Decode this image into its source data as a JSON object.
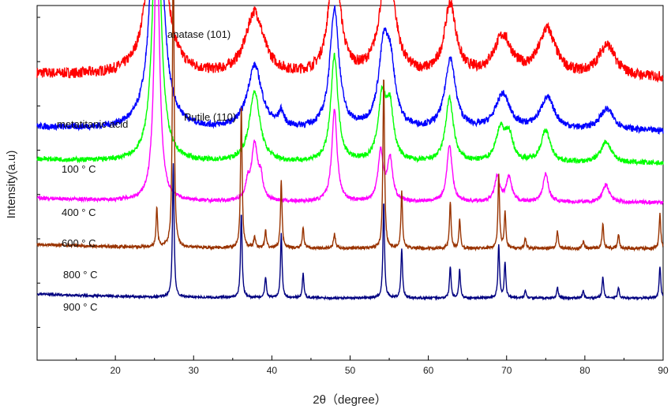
{
  "chart_data": {
    "type": "line",
    "title": "",
    "xlabel": "2θ（degree）",
    "ylabel": "Intensity(a.u)",
    "xlim": [
      10,
      90
    ],
    "xticks": [
      20,
      30,
      40,
      50,
      60,
      70,
      80,
      90
    ],
    "y_tick_labels_shown": false,
    "grid": false,
    "legend": "none (series labelled inline at left)",
    "annotations": [
      {
        "text": "anatase (101)",
        "x": 25.3
      },
      {
        "text": "Rutile (110)",
        "x": 27.4
      }
    ],
    "series": [
      {
        "name": "metatitanic acid",
        "color": "#ff0000",
        "baseline": 0.795,
        "noise": 0.015,
        "peaks": [
          [
            25.3,
            0.86,
            0.9
          ],
          [
            37.8,
            0.18,
            1.4
          ],
          [
            48.0,
            0.36,
            0.8
          ],
          [
            54.5,
            0.21,
            1.0
          ],
          [
            55.2,
            0.14,
            0.9
          ],
          [
            62.8,
            0.2,
            0.9
          ],
          [
            69.5,
            0.11,
            1.4
          ],
          [
            75.2,
            0.13,
            1.3
          ],
          [
            82.8,
            0.09,
            1.3
          ]
        ]
      },
      {
        "name": "100 ° C",
        "color": "#0000ff",
        "baseline": 0.645,
        "noise": 0.009,
        "peaks": [
          [
            25.3,
            0.85,
            0.8
          ],
          [
            37.8,
            0.18,
            1.1
          ],
          [
            41.2,
            0.04,
            0.4
          ],
          [
            48.0,
            0.34,
            0.7
          ],
          [
            54.3,
            0.22,
            0.8
          ],
          [
            55.2,
            0.14,
            0.7
          ],
          [
            62.8,
            0.2,
            0.8
          ],
          [
            69.5,
            0.1,
            1.1
          ],
          [
            75.2,
            0.09,
            1.1
          ],
          [
            82.8,
            0.06,
            1.1
          ]
        ]
      },
      {
        "name": "400 ° C",
        "color": "#00ff00",
        "baseline": 0.555,
        "noise": 0.007,
        "peaks": [
          [
            25.3,
            0.8,
            0.6
          ],
          [
            37.8,
            0.2,
            0.8
          ],
          [
            48.0,
            0.3,
            0.55
          ],
          [
            54.1,
            0.18,
            0.6
          ],
          [
            55.1,
            0.14,
            0.55
          ],
          [
            62.7,
            0.18,
            0.6
          ],
          [
            69.2,
            0.09,
            0.7
          ],
          [
            70.3,
            0.07,
            0.6
          ],
          [
            75.0,
            0.09,
            0.7
          ],
          [
            82.7,
            0.06,
            0.8
          ]
        ]
      },
      {
        "name": "600 ° C",
        "color": "#ff00ff",
        "baseline": 0.445,
        "noise": 0.005,
        "peaks": [
          [
            25.3,
            0.77,
            0.4
          ],
          [
            36.9,
            0.04,
            0.3
          ],
          [
            37.8,
            0.16,
            0.5
          ],
          [
            38.6,
            0.05,
            0.3
          ],
          [
            48.0,
            0.26,
            0.4
          ],
          [
            53.9,
            0.14,
            0.4
          ],
          [
            55.1,
            0.12,
            0.4
          ],
          [
            62.7,
            0.16,
            0.4
          ],
          [
            68.8,
            0.07,
            0.4
          ],
          [
            70.3,
            0.07,
            0.4
          ],
          [
            75.0,
            0.08,
            0.4
          ],
          [
            82.7,
            0.05,
            0.5
          ]
        ]
      },
      {
        "name": "800 ° C",
        "color": "#993300",
        "baseline": 0.315,
        "noise": 0.004,
        "peaks": [
          [
            25.3,
            0.11,
            0.12
          ],
          [
            27.4,
            0.89,
            0.12
          ],
          [
            36.1,
            0.4,
            0.12
          ],
          [
            37.8,
            0.03,
            0.15
          ],
          [
            39.2,
            0.05,
            0.12
          ],
          [
            41.2,
            0.19,
            0.12
          ],
          [
            44.0,
            0.06,
            0.12
          ],
          [
            48.0,
            0.04,
            0.15
          ],
          [
            54.3,
            0.49,
            0.12
          ],
          [
            56.6,
            0.16,
            0.12
          ],
          [
            62.8,
            0.13,
            0.12
          ],
          [
            64.0,
            0.08,
            0.12
          ],
          [
            69.0,
            0.21,
            0.12
          ],
          [
            69.8,
            0.1,
            0.12
          ],
          [
            72.4,
            0.03,
            0.12
          ],
          [
            76.5,
            0.05,
            0.12
          ],
          [
            79.8,
            0.02,
            0.12
          ],
          [
            82.3,
            0.07,
            0.12
          ],
          [
            84.3,
            0.04,
            0.12
          ],
          [
            89.6,
            0.1,
            0.12
          ]
        ]
      },
      {
        "name": "900 ° C",
        "color": "#000080",
        "baseline": 0.175,
        "noise": 0.003,
        "peaks": [
          [
            27.4,
            0.38,
            0.12
          ],
          [
            36.1,
            0.24,
            0.12
          ],
          [
            39.2,
            0.06,
            0.12
          ],
          [
            41.2,
            0.18,
            0.12
          ],
          [
            44.0,
            0.07,
            0.12
          ],
          [
            54.3,
            0.27,
            0.12
          ],
          [
            56.6,
            0.14,
            0.12
          ],
          [
            62.8,
            0.09,
            0.12
          ],
          [
            64.0,
            0.08,
            0.12
          ],
          [
            69.0,
            0.15,
            0.12
          ],
          [
            69.8,
            0.1,
            0.12
          ],
          [
            72.4,
            0.02,
            0.12
          ],
          [
            76.5,
            0.03,
            0.12
          ],
          [
            79.8,
            0.02,
            0.12
          ],
          [
            82.3,
            0.06,
            0.12
          ],
          [
            84.3,
            0.03,
            0.12
          ],
          [
            89.6,
            0.09,
            0.12
          ]
        ]
      }
    ]
  }
}
